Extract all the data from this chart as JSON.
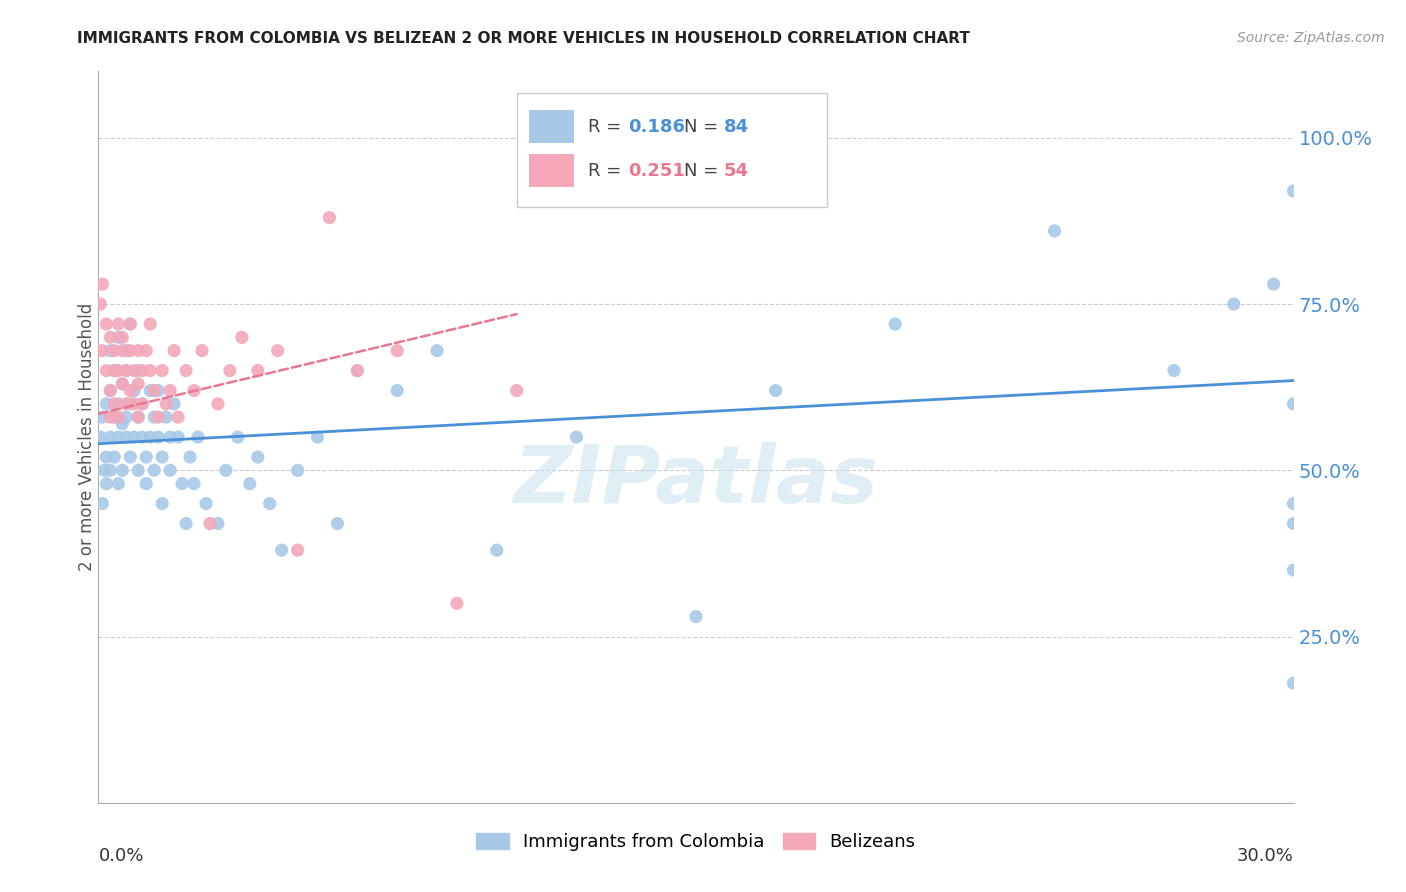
{
  "title": "IMMIGRANTS FROM COLOMBIA VS BELIZEAN 2 OR MORE VEHICLES IN HOUSEHOLD CORRELATION CHART",
  "source": "Source: ZipAtlas.com",
  "ylabel": "2 or more Vehicles in Household",
  "colombia_R": 0.186,
  "colombia_N": 84,
  "belize_R": 0.251,
  "belize_N": 54,
  "colombia_color": "#a8c8e8",
  "belize_color": "#f4a8b8",
  "colombia_line_color": "#4a90d9",
  "belize_line_color": "#e87890",
  "watermark": "ZIPatlas",
  "background_color": "#ffffff",
  "xmin": 0.0,
  "xmax": 0.3,
  "ymin": 0.0,
  "ymax": 1.1,
  "yticks": [
    0.25,
    0.5,
    0.75,
    1.0
  ],
  "ytick_labels": [
    "25.0%",
    "50.0%",
    "75.0%",
    "100.0%"
  ],
  "colombia_x": [
    0.0005,
    0.001,
    0.001,
    0.0015,
    0.002,
    0.002,
    0.002,
    0.003,
    0.003,
    0.003,
    0.003,
    0.004,
    0.004,
    0.004,
    0.005,
    0.005,
    0.005,
    0.005,
    0.006,
    0.006,
    0.006,
    0.007,
    0.007,
    0.007,
    0.007,
    0.008,
    0.008,
    0.008,
    0.009,
    0.009,
    0.01,
    0.01,
    0.01,
    0.011,
    0.011,
    0.012,
    0.012,
    0.013,
    0.013,
    0.014,
    0.014,
    0.015,
    0.015,
    0.016,
    0.016,
    0.017,
    0.018,
    0.018,
    0.019,
    0.02,
    0.021,
    0.022,
    0.023,
    0.024,
    0.025,
    0.027,
    0.03,
    0.032,
    0.035,
    0.038,
    0.04,
    0.043,
    0.046,
    0.05,
    0.055,
    0.06,
    0.065,
    0.075,
    0.085,
    0.1,
    0.12,
    0.15,
    0.17,
    0.2,
    0.24,
    0.27,
    0.285,
    0.295,
    0.3,
    0.3,
    0.3,
    0.3,
    0.3,
    0.3
  ],
  "colombia_y": [
    0.55,
    0.45,
    0.58,
    0.5,
    0.52,
    0.6,
    0.48,
    0.55,
    0.62,
    0.5,
    0.68,
    0.58,
    0.65,
    0.52,
    0.6,
    0.55,
    0.7,
    0.48,
    0.63,
    0.57,
    0.5,
    0.65,
    0.58,
    0.55,
    0.68,
    0.6,
    0.52,
    0.72,
    0.55,
    0.62,
    0.58,
    0.5,
    0.65,
    0.6,
    0.55,
    0.52,
    0.48,
    0.55,
    0.62,
    0.58,
    0.5,
    0.55,
    0.62,
    0.45,
    0.52,
    0.58,
    0.55,
    0.5,
    0.6,
    0.55,
    0.48,
    0.42,
    0.52,
    0.48,
    0.55,
    0.45,
    0.42,
    0.5,
    0.55,
    0.48,
    0.52,
    0.45,
    0.38,
    0.5,
    0.55,
    0.42,
    0.65,
    0.62,
    0.68,
    0.38,
    0.55,
    0.28,
    0.62,
    0.72,
    0.86,
    0.65,
    0.75,
    0.78,
    0.6,
    0.45,
    0.35,
    0.42,
    0.92,
    0.18
  ],
  "belize_x": [
    0.0005,
    0.001,
    0.001,
    0.002,
    0.002,
    0.003,
    0.003,
    0.003,
    0.004,
    0.004,
    0.004,
    0.005,
    0.005,
    0.005,
    0.006,
    0.006,
    0.006,
    0.007,
    0.007,
    0.008,
    0.008,
    0.008,
    0.009,
    0.009,
    0.01,
    0.01,
    0.01,
    0.011,
    0.011,
    0.012,
    0.013,
    0.013,
    0.014,
    0.015,
    0.016,
    0.017,
    0.018,
    0.019,
    0.02,
    0.022,
    0.024,
    0.026,
    0.028,
    0.03,
    0.033,
    0.036,
    0.04,
    0.045,
    0.05,
    0.058,
    0.065,
    0.075,
    0.09,
    0.105
  ],
  "belize_y": [
    0.75,
    0.68,
    0.78,
    0.65,
    0.72,
    0.7,
    0.62,
    0.58,
    0.65,
    0.6,
    0.68,
    0.72,
    0.65,
    0.58,
    0.7,
    0.63,
    0.68,
    0.65,
    0.6,
    0.68,
    0.62,
    0.72,
    0.65,
    0.6,
    0.68,
    0.63,
    0.58,
    0.65,
    0.6,
    0.68,
    0.65,
    0.72,
    0.62,
    0.58,
    0.65,
    0.6,
    0.62,
    0.68,
    0.58,
    0.65,
    0.62,
    0.68,
    0.42,
    0.6,
    0.65,
    0.7,
    0.65,
    0.68,
    0.38,
    0.88,
    0.65,
    0.68,
    0.3,
    0.62
  ]
}
